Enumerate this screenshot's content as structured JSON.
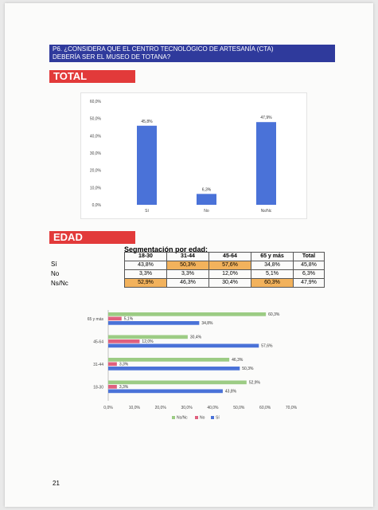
{
  "question": {
    "line1": "P6. ¿CONSIDERA QUE EL CENTRO TECNOLÓGICO DE ARTESANÍA (CTA)",
    "line2": "DEBERÍA SER EL MUSEO DE TOTANA?"
  },
  "sections": {
    "total": "TOTAL",
    "edad": "EDAD"
  },
  "segmentation": {
    "title": "Segmentación por edad:",
    "headers": [
      "18-30",
      "31-44",
      "45-64",
      "65 y más",
      "Total"
    ],
    "rows": [
      {
        "label": "Sí",
        "values": [
          "43,8%",
          "50,3%",
          "57,6%",
          "34,8%",
          "45,8%"
        ]
      },
      {
        "label": "No",
        "values": [
          "3,3%",
          "3,3%",
          "12,0%",
          "5,1%",
          "6,3%"
        ]
      },
      {
        "label": "Ns/Nc",
        "values": [
          "52,9%",
          "46,3%",
          "30,4%",
          "60,3%",
          "47,9%"
        ]
      }
    ],
    "highlight_color": "#f2b25c"
  },
  "chart_data": [
    {
      "type": "bar",
      "categories": [
        "Sí",
        "No",
        "Ns/Nc"
      ],
      "values": [
        45.8,
        6.3,
        47.9
      ],
      "data_labels": [
        "45,8%",
        "6,3%",
        "47,9%"
      ],
      "ylim": [
        0,
        60
      ],
      "yticks": [
        "0,0%",
        "10,0%",
        "20,0%",
        "30,0%",
        "40,0%",
        "50,0%",
        "60,0%"
      ],
      "color": "#4a72d8",
      "grid": false
    },
    {
      "type": "bar",
      "orientation": "horizontal",
      "categories": [
        "65 y más",
        "45-64",
        "31-44",
        "18-30"
      ],
      "series": [
        {
          "name": "Ns/Nc",
          "color": "#9ccc84",
          "values": [
            60.3,
            30.4,
            46.3,
            52.9
          ],
          "labels": [
            "60,3%",
            "30,4%",
            "46,3%",
            "52,9%"
          ]
        },
        {
          "name": "No",
          "color": "#e0607e",
          "values": [
            5.1,
            12.0,
            3.3,
            3.3
          ],
          "labels": [
            "5,1%",
            "12,0%",
            "3,3%",
            "3,3%"
          ]
        },
        {
          "name": "Sí",
          "color": "#4a72d8",
          "values": [
            34.8,
            57.6,
            50.3,
            43.8
          ],
          "labels": [
            "34,8%",
            "57,6%",
            "50,3%",
            "43,8%"
          ]
        }
      ],
      "xlim": [
        0,
        70
      ],
      "xticks": [
        "0,0%",
        "10,0%",
        "20,0%",
        "30,0%",
        "40,0%",
        "50,0%",
        "60,0%",
        "70,0%"
      ],
      "legend": "bottom",
      "grid": false
    }
  ],
  "page_number": "21"
}
